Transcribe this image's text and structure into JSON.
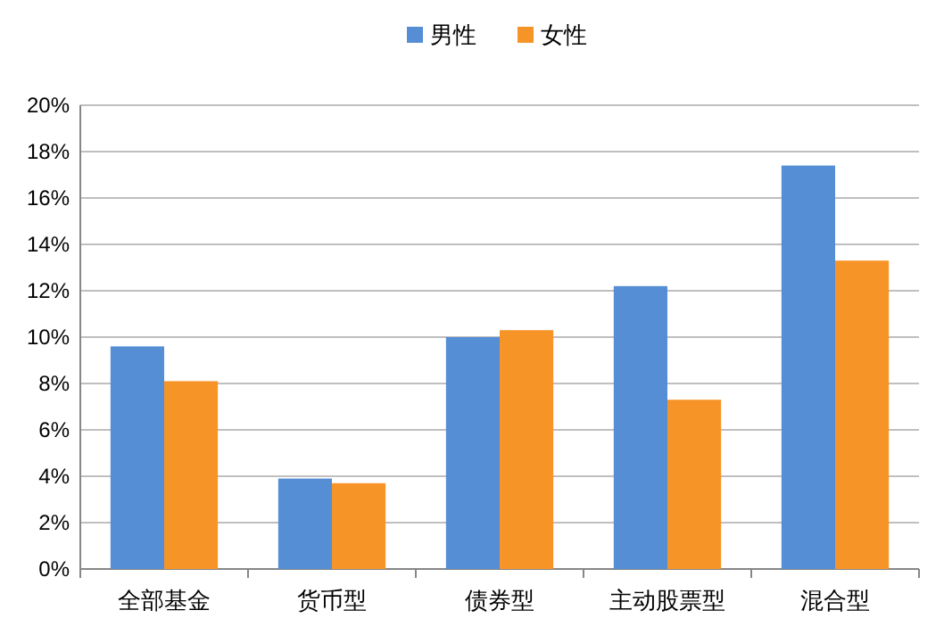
{
  "chart_data": {
    "type": "bar",
    "categories": [
      "全部基金",
      "货币型",
      "债券型",
      "主动股票型",
      "混合型"
    ],
    "series": [
      {
        "name": "男性",
        "color": "#558ed5",
        "values": [
          9.6,
          3.9,
          10.0,
          12.2,
          17.4
        ]
      },
      {
        "name": "女性",
        "color": "#f79428",
        "values": [
          8.1,
          3.7,
          10.3,
          7.3,
          13.3
        ]
      }
    ],
    "ylim": [
      0,
      20
    ],
    "yticks": [
      {
        "value": 0,
        "label": "0%"
      },
      {
        "value": 2,
        "label": "2%"
      },
      {
        "value": 4,
        "label": "4%"
      },
      {
        "value": 6,
        "label": "6%"
      },
      {
        "value": 8,
        "label": "8%"
      },
      {
        "value": 10,
        "label": "10%"
      },
      {
        "value": 12,
        "label": "12%"
      },
      {
        "value": 14,
        "label": "14%"
      },
      {
        "value": 16,
        "label": "16%"
      },
      {
        "value": 18,
        "label": "18%"
      },
      {
        "value": 20,
        "label": "20%"
      }
    ],
    "grid": "y",
    "legend": "top"
  }
}
